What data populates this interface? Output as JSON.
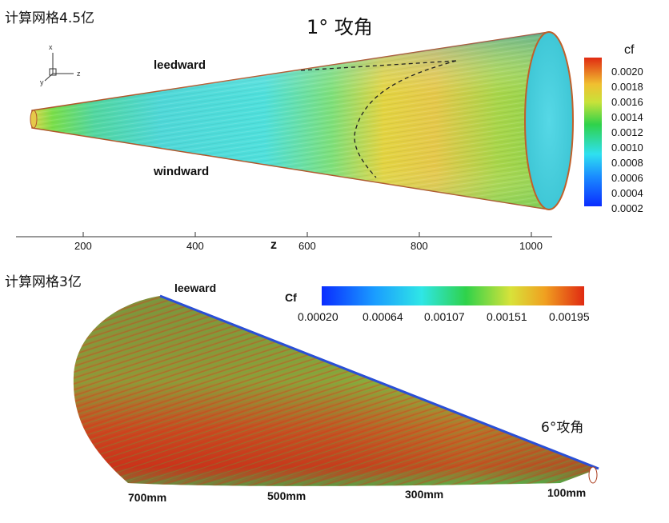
{
  "top": {
    "grid_label": "计算网格4.5亿",
    "title": "1° 攻角",
    "leeward_label": "leedward",
    "windward_label": "windward",
    "triad": {
      "x": "x",
      "y": "y",
      "z": "z"
    },
    "colorbar": {
      "title": "cf",
      "ticks": [
        "0.0020",
        "0.0018",
        "0.0016",
        "0.0014",
        "0.0012",
        "0.0010",
        "0.0008",
        "0.0006",
        "0.0004",
        "0.0002"
      ]
    },
    "axis": {
      "label": "z",
      "ticks": [
        "200",
        "400",
        "600",
        "800",
        "1000"
      ]
    }
  },
  "bottom": {
    "grid_label": "计算网格3亿",
    "leeward_label": "leeward",
    "angle_label": "6°攻角",
    "colorbar": {
      "title": "Cf",
      "ticks": [
        "0.00020",
        "0.00064",
        "0.00107",
        "0.00151",
        "0.00195"
      ]
    },
    "stations": [
      "700mm",
      "500mm",
      "300mm",
      "100mm"
    ]
  },
  "colors": {
    "low": "#1e3cff",
    "mid": "#2fd24a",
    "high": "#e02a12",
    "cyan": "#4fe6e6"
  }
}
